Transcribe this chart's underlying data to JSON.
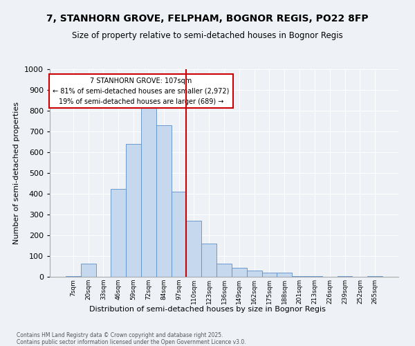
{
  "title": "7, STANHORN GROVE, FELPHAM, BOGNOR REGIS, PO22 8FP",
  "subtitle": "Size of property relative to semi-detached houses in Bognor Regis",
  "xlabel": "Distribution of semi-detached houses by size in Bognor Regis",
  "ylabel": "Number of semi-detached properties",
  "footer_line1": "Contains HM Land Registry data © Crown copyright and database right 2025.",
  "footer_line2": "Contains public sector information licensed under the Open Government Licence v3.0.",
  "bin_labels": [
    "7sqm",
    "20sqm",
    "33sqm",
    "46sqm",
    "59sqm",
    "72sqm",
    "84sqm",
    "97sqm",
    "110sqm",
    "123sqm",
    "136sqm",
    "149sqm",
    "162sqm",
    "175sqm",
    "188sqm",
    "201sqm",
    "213sqm",
    "226sqm",
    "239sqm",
    "252sqm",
    "265sqm"
  ],
  "bar_values": [
    5,
    65,
    0,
    425,
    640,
    820,
    730,
    410,
    270,
    160,
    65,
    45,
    30,
    20,
    20,
    5,
    5,
    0,
    5,
    0,
    5
  ],
  "bar_color": "#c5d8ed",
  "bar_edge_color": "#5b8fc9",
  "vline_x_idx": 8,
  "vline_color": "#cc0000",
  "annotation_text": "7 STANHORN GROVE: 107sqm\n← 81% of semi-detached houses are smaller (2,972)\n19% of semi-detached houses are larger (689) →",
  "annotation_box_color": "#ffffff",
  "annotation_box_edge": "#cc0000",
  "ylim": [
    0,
    1000
  ],
  "yticks": [
    0,
    100,
    200,
    300,
    400,
    500,
    600,
    700,
    800,
    900,
    1000
  ],
  "background_color": "#eef2f7",
  "plot_background": "#eef2f7",
  "grid_color": "#ffffff"
}
